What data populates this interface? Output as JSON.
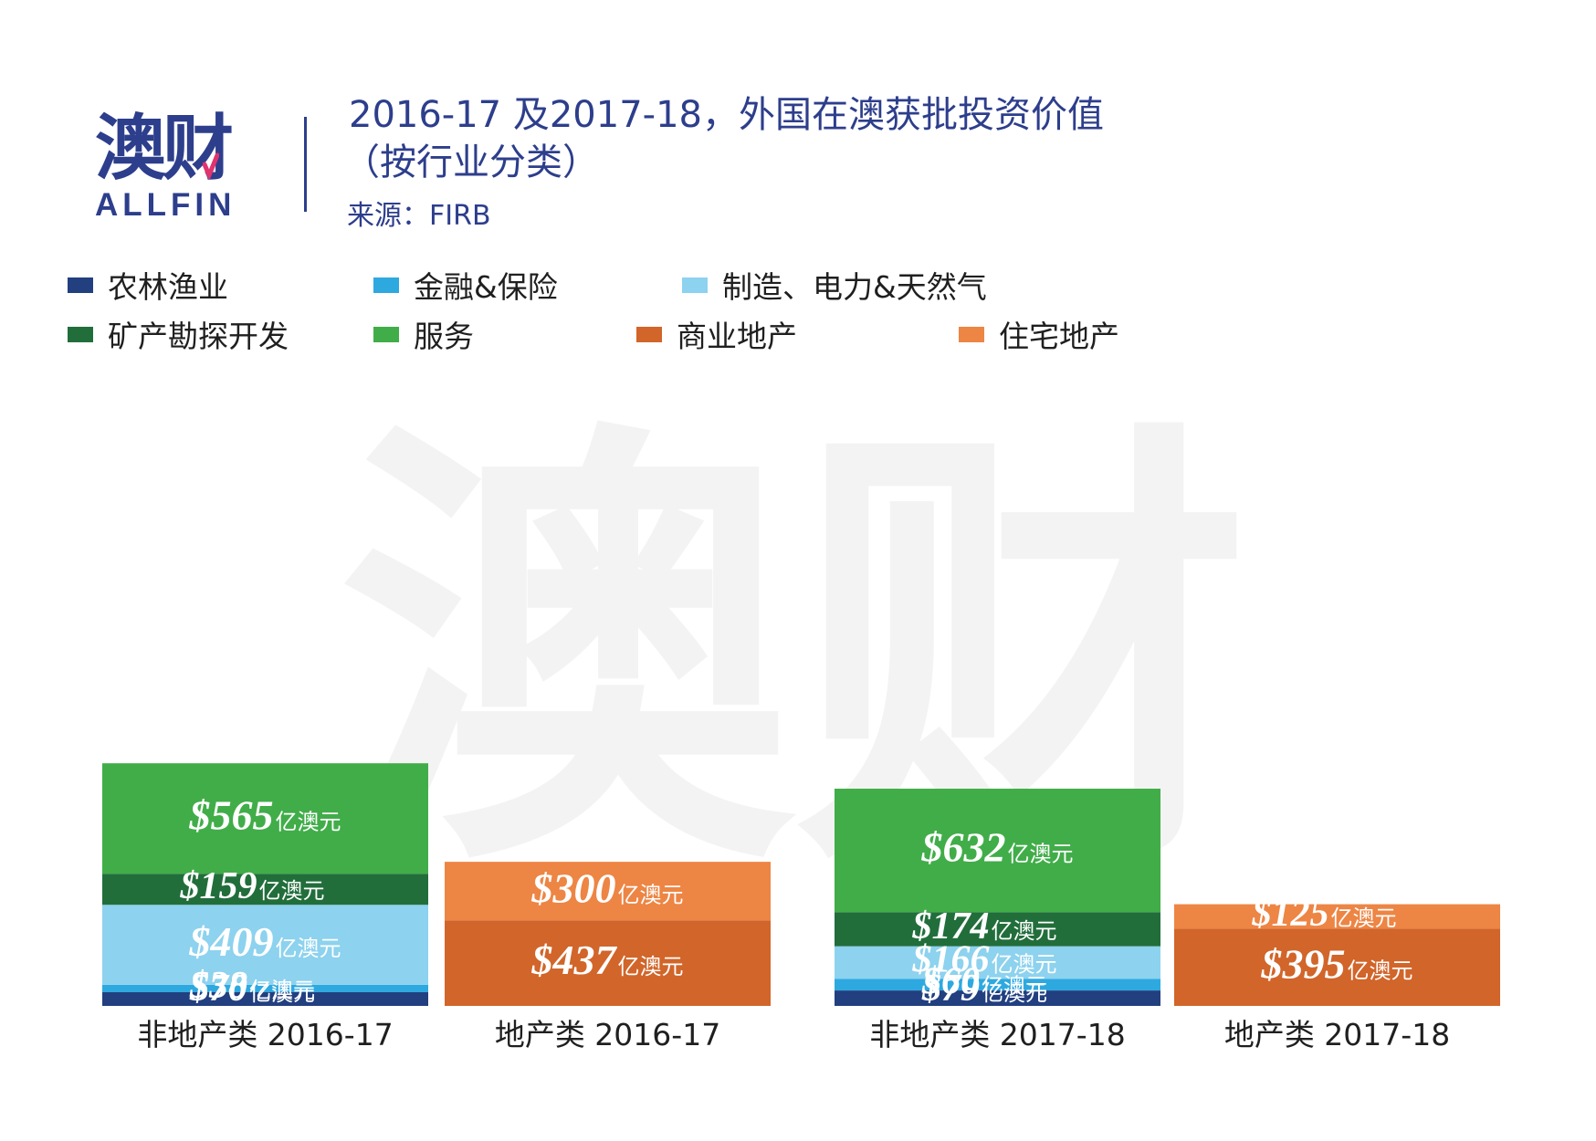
{
  "header": {
    "logo_cn": "澳财",
    "logo_en": "ALLFIN",
    "title_line1": "2016-17 及2017-18，外国在澳获批投资价值",
    "title_line2": "（按行业分类）",
    "source": "来源：FIRB"
  },
  "colors": {
    "brand": "#2d3e8c",
    "agri": "#223f80",
    "finance": "#2ea9e0",
    "manufacturing": "#8dd2ee",
    "mining": "#216e3b",
    "services": "#41ad49",
    "commercial": "#d1652a",
    "residential": "#ed8544"
  },
  "chart_data": {
    "type": "bar",
    "stacked": true,
    "title": "2016-17 及2017-18，外国在澳获批投资价值（按行业分类）",
    "unit": "亿澳元",
    "value_prefix": "$",
    "categories": [
      "非地产类 2016-17",
      "地产类 2016-17",
      "非地产类 2017-18",
      "地产类 2017-18"
    ],
    "series": [
      {
        "name": "农林渔业",
        "key": "agri",
        "values": [
          70,
          0,
          79,
          0
        ]
      },
      {
        "name": "金融&保险",
        "key": "finance",
        "values": [
          38,
          0,
          60,
          0
        ]
      },
      {
        "name": "制造、电力&天然气",
        "key": "manufacturing",
        "values": [
          409,
          0,
          166,
          0
        ]
      },
      {
        "name": "矿产勘探开发",
        "key": "mining",
        "values": [
          159,
          0,
          174,
          0
        ]
      },
      {
        "name": "服务",
        "key": "services",
        "values": [
          565,
          0,
          632,
          0
        ]
      },
      {
        "name": "商业地产",
        "key": "commercial",
        "values": [
          0,
          437,
          0,
          395
        ]
      },
      {
        "name": "住宅地产",
        "key": "residential",
        "values": [
          0,
          300,
          0,
          125
        ]
      }
    ],
    "legend_order": [
      "agri",
      "finance",
      "manufacturing",
      "mining",
      "services",
      "commercial",
      "residential"
    ],
    "legend_position": "top",
    "grid": false
  }
}
